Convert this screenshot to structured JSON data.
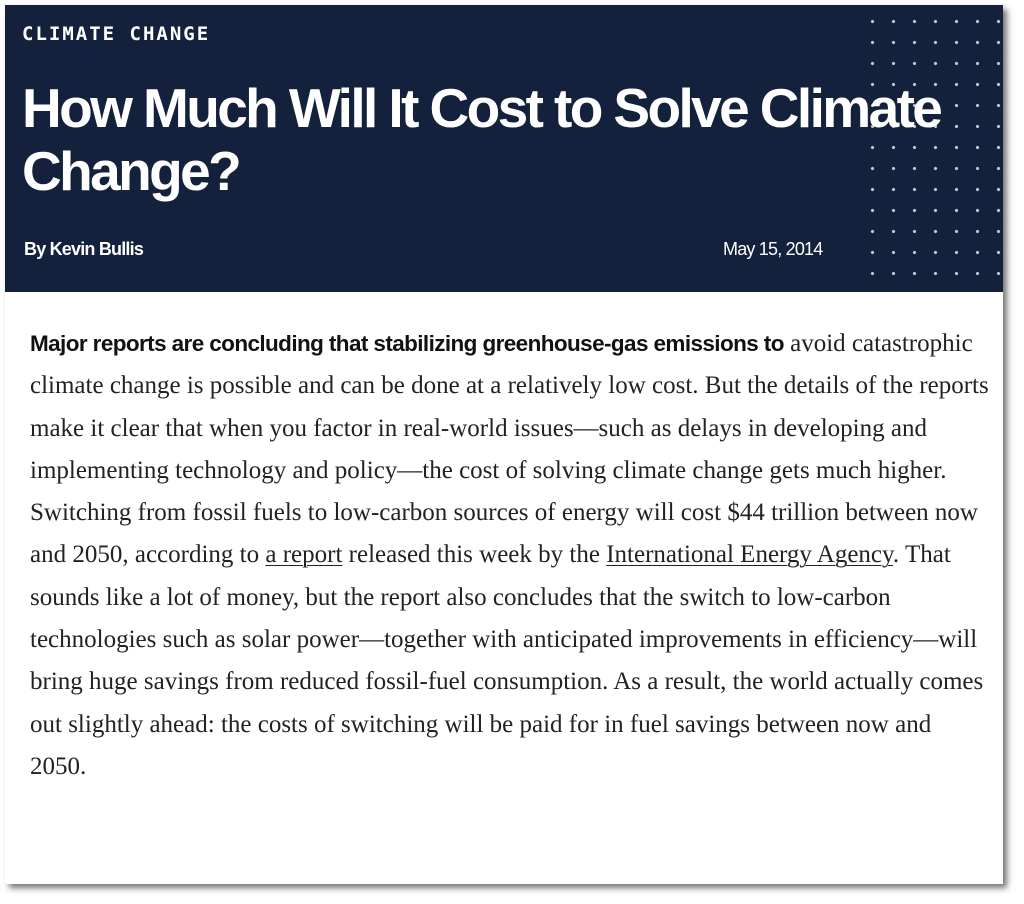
{
  "header": {
    "section": "CLIMATE CHANGE",
    "title": "How Much Will It Cost to Solve Climate Change?",
    "author": "By Kevin Bullis",
    "date": "May 15, 2014"
  },
  "article": {
    "lead": "Major reports are concluding that stabilizing greenhouse-gas emissions to",
    "text_1": "avoid catastrophic climate change is possible and can be done at a relatively low cost. But the details of the reports make it clear that when you factor in real-world issues—such as delays in developing and implementing technology and policy—the cost of solving climate change gets much higher. Switching from fossil fuels to low-carbon sources of energy will cost $44 trillion between now and 2050, according to ",
    "link_report": "a report",
    "text_2": " released this week by the ",
    "link_iea": "International Energy Agency",
    "text_3": ". That sounds like a lot of money, but the report also concludes that the switch to low-carbon technologies such as solar power—together with anticipated improvements in efficiency—will bring huge savings from reduced fossil-fuel consumption. As a result, the world actually comes out slightly ahead: the costs of switching will be paid for in fuel savings between now and 2050."
  },
  "colors": {
    "header_background": "#14213d",
    "header_text": "#ffffff",
    "body_text": "#222222",
    "page_background": "#ffffff"
  },
  "icons": {
    "header_decoration": "dot-grid-pattern"
  }
}
